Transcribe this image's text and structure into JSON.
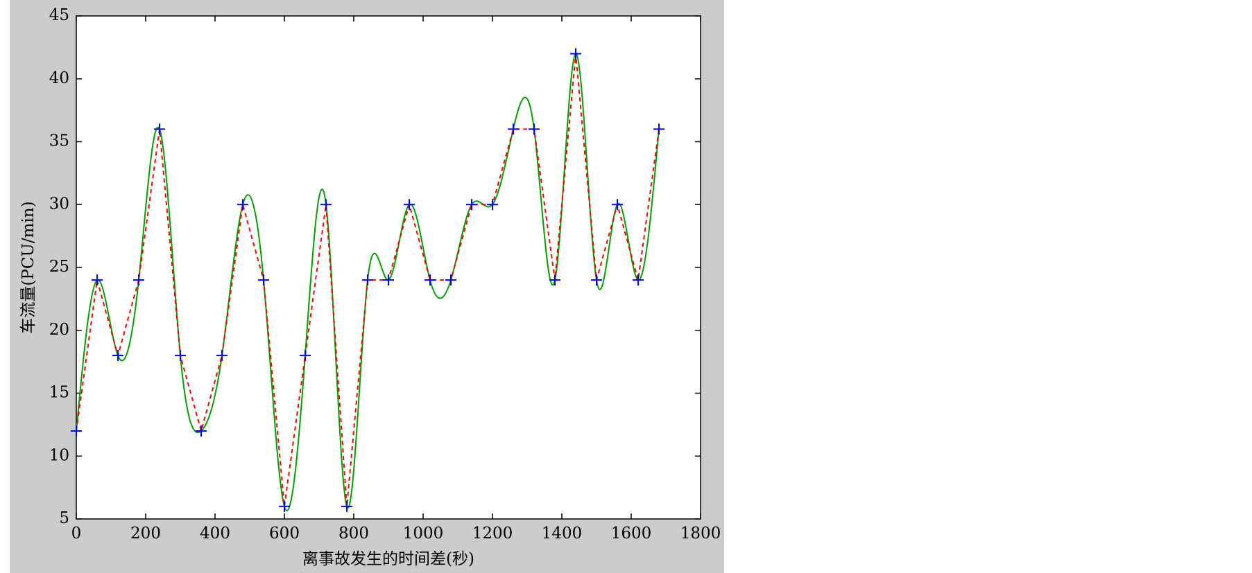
{
  "chart_data": {
    "type": "line",
    "xlabel": "离事故发生的时间差(秒)",
    "ylabel": "车流量(PCU/min)",
    "x": [
      0,
      60,
      120,
      180,
      240,
      300,
      360,
      420,
      480,
      540,
      600,
      660,
      720,
      780,
      840,
      900,
      960,
      1020,
      1080,
      1140,
      1200,
      1260,
      1320,
      1380,
      1440,
      1500,
      1560,
      1620,
      1680
    ],
    "series": [
      {
        "color": "#00a000",
        "style": "spline",
        "values": [
          12,
          24,
          18,
          24,
          36,
          18,
          12,
          18,
          30,
          24,
          6,
          18,
          30,
          6,
          24,
          24,
          30,
          24,
          24,
          30,
          30,
          36,
          36,
          24,
          42,
          24,
          30,
          24,
          36
        ]
      },
      {
        "color": "#ff0000",
        "style": "dashed",
        "values": [
          12,
          24,
          18,
          24,
          36,
          18,
          12,
          18,
          30,
          24,
          6,
          18,
          30,
          6,
          24,
          24,
          30,
          24,
          24,
          30,
          30,
          36,
          36,
          24,
          42,
          24,
          30,
          24,
          36
        ]
      },
      {
        "color": "#0000ff",
        "style": "plus",
        "values": [
          12,
          24,
          18,
          24,
          36,
          18,
          12,
          18,
          30,
          24,
          6,
          18,
          30,
          6,
          24,
          24,
          30,
          24,
          24,
          30,
          30,
          36,
          36,
          24,
          42,
          24,
          30,
          24,
          36
        ]
      }
    ],
    "xlim": [
      0,
      1800
    ],
    "xticks": [
      0,
      200,
      400,
      600,
      800,
      1000,
      1200,
      1400,
      1600,
      1800
    ],
    "ylim": [
      5,
      45
    ],
    "yticks": [
      5,
      10,
      15,
      20,
      25,
      30,
      35,
      40,
      45
    ],
    "grid": false
  }
}
